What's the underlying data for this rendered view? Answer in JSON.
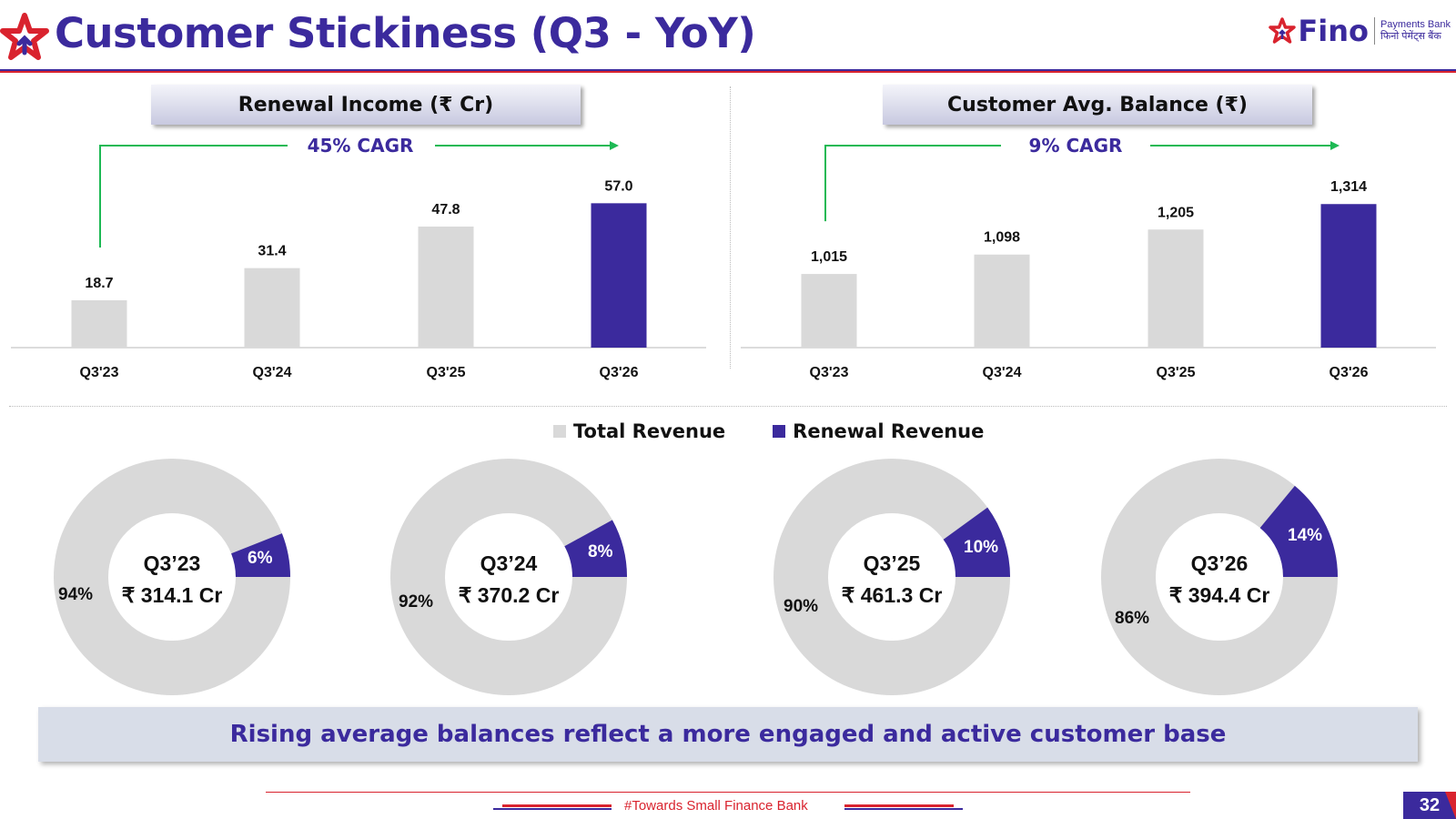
{
  "header": {
    "title": "Customer Stickiness (Q3 - YoY)",
    "brand_name": "Fino",
    "brand_sub_en": "Payments Bank",
    "brand_sub_hi": "फिनो पेमेंट्स बैंक",
    "colors": {
      "primary": "#3b2a9d",
      "accent": "#d9232e",
      "bar_grey": "#d9d9d9",
      "arrow": "#1db954"
    }
  },
  "chart_data": [
    {
      "type": "bar",
      "title": "Renewal Income (₹ Cr)",
      "annotation": "45% CAGR",
      "categories": [
        "Q3'23",
        "Q3'24",
        "Q3'25",
        "Q3'26"
      ],
      "values": [
        18.7,
        31.4,
        47.8,
        57.0
      ],
      "data_labels": [
        "18.7",
        "31.4",
        "47.8",
        "57.0"
      ],
      "highlight_index": 3
    },
    {
      "type": "bar",
      "title": "Customer Avg. Balance (₹)",
      "annotation": "9% CAGR",
      "categories": [
        "Q3'23",
        "Q3'24",
        "Q3'25",
        "Q3'26"
      ],
      "values": [
        1015,
        1098,
        1205,
        1314
      ],
      "data_labels": [
        "1,015",
        "1,098",
        "1,205",
        "1,314"
      ],
      "highlight_index": 3
    },
    {
      "type": "pie",
      "legend": [
        "Total Revenue",
        "Renewal Revenue"
      ],
      "donuts": [
        {
          "label": "Q3’23",
          "value": "₹ 314.1 Cr",
          "renewal_pct": 6,
          "total_pct": 94,
          "renewal_text": "6%",
          "total_text": "94%"
        },
        {
          "label": "Q3’24",
          "value": "₹ 370.2 Cr",
          "renewal_pct": 8,
          "total_pct": 92,
          "renewal_text": "8%",
          "total_text": "92%"
        },
        {
          "label": "Q3’25",
          "value": "₹ 461.3 Cr",
          "renewal_pct": 10,
          "total_pct": 90,
          "renewal_text": "10%",
          "total_text": "90%"
        },
        {
          "label": "Q3’26",
          "value": "₹ 394.4 Cr",
          "renewal_pct": 14,
          "total_pct": 86,
          "renewal_text": "14%",
          "total_text": "86%"
        }
      ]
    }
  ],
  "banner": "Rising average balances reflect a more engaged and active customer base",
  "footer": {
    "tagline": "#Towards Small Finance Bank",
    "page_number": "32"
  }
}
